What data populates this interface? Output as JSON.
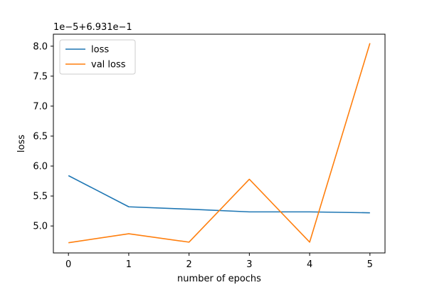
{
  "chart_data": {
    "type": "line",
    "xlabel": "number of epochs",
    "ylabel": "loss",
    "offset_text": "1e−5+6.931e−1",
    "x": [
      0,
      1,
      2,
      3,
      4,
      5
    ],
    "x_ticks": [
      0,
      1,
      2,
      3,
      4,
      5
    ],
    "x_tick_labels": [
      "0",
      "1",
      "2",
      "3",
      "4",
      "5"
    ],
    "y_ticks": [
      5.0,
      5.5,
      6.0,
      6.5,
      7.0,
      7.5,
      8.0
    ],
    "y_tick_labels": [
      "5.0",
      "5.5",
      "6.0",
      "6.5",
      "7.0",
      "7.5",
      "8.0"
    ],
    "xlim": [
      -0.25,
      5.25
    ],
    "ylim": [
      4.55,
      8.2
    ],
    "grid": false,
    "legend_position": "upper-left",
    "series": [
      {
        "name": "loss",
        "color": "#1f77b4",
        "values": [
          5.84,
          5.32,
          5.28,
          5.235,
          5.235,
          5.22
        ]
      },
      {
        "name": "val loss",
        "color": "#ff7f0e",
        "values": [
          4.72,
          4.87,
          4.73,
          5.78,
          4.73,
          8.05
        ]
      }
    ]
  }
}
